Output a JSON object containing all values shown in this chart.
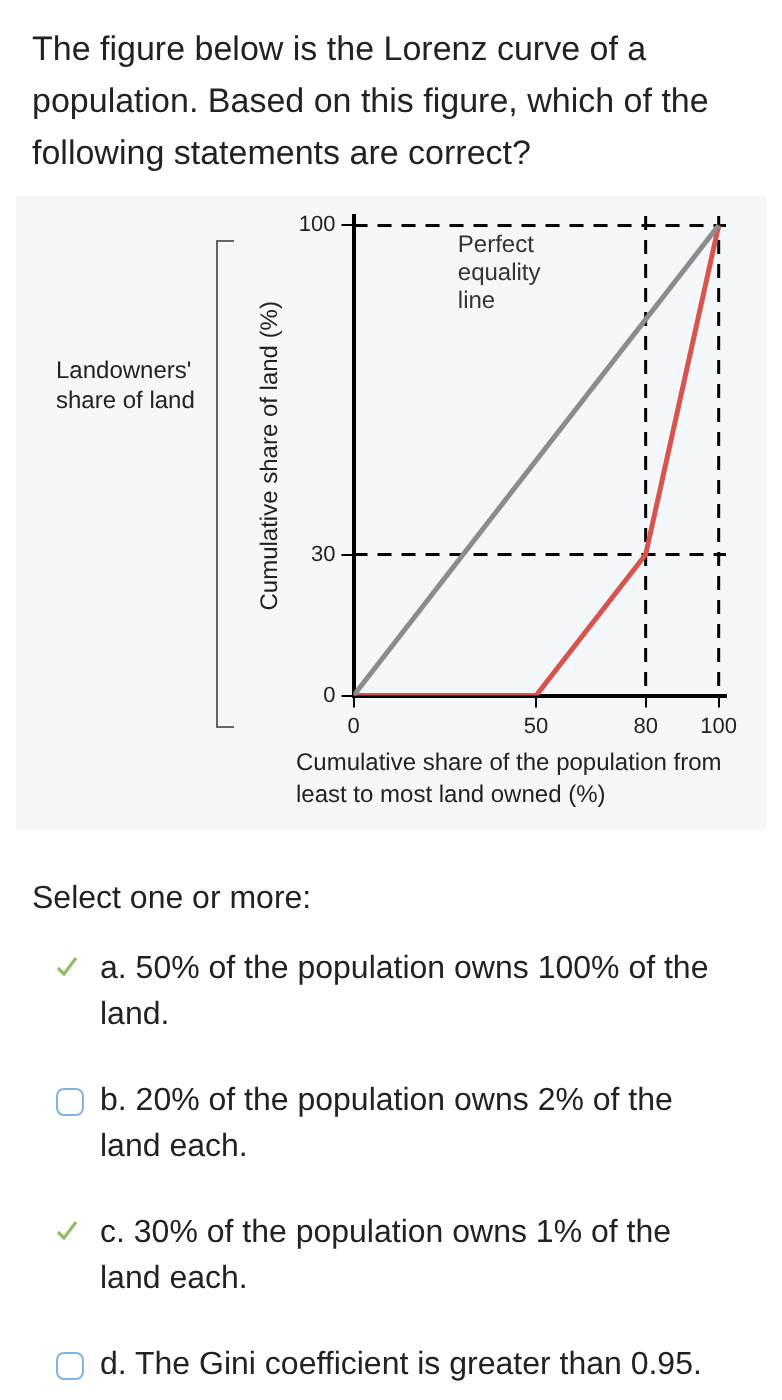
{
  "chart_data": {
    "type": "line",
    "title": "The figure below is the Lorenz curve of a population. Based on this figure, which of the following statements are correct?",
    "xlabel": "Cumulative share of the population from least to most land owned (%)",
    "ylabel": "Cumulative share of land (%)",
    "series": [
      {
        "name": "Perfect equality line",
        "color": "#8c8c8c",
        "x": [
          0,
          100
        ],
        "values": [
          0,
          100
        ]
      },
      {
        "color": "#d9534f",
        "x": [
          0,
          50,
          80,
          100
        ],
        "values": [
          0,
          0,
          30,
          100
        ]
      }
    ],
    "xlim": [
      0,
      102
    ],
    "ylim": [
      0,
      102
    ],
    "xticks": [
      0,
      50,
      80,
      100
    ],
    "yticks": [
      0,
      30,
      100
    ],
    "ref_lines": [
      {
        "axis": "y",
        "value": 100,
        "color": "#000000",
        "line_style": "dashed"
      },
      {
        "axis": "y",
        "value": 30,
        "color": "#000000",
        "line_style": "dashed"
      },
      {
        "axis": "x",
        "value": 80,
        "color": "#000000",
        "line_style": "dashed"
      },
      {
        "axis": "x",
        "value": 100,
        "color": "#000000",
        "line_style": "dashed"
      }
    ],
    "marker": "none",
    "line_style": "solid",
    "legend": false,
    "annotations": [
      "Landowners' share of land",
      "Select one or more:",
      "a. 50% of the population owns 100% of the land.",
      "b. 20% of the population owns 2% of the land each.",
      "c. 30% of the population owns 1% of the land each.",
      "d. The Gini coefficient is greater than 0.95."
    ]
  }
}
